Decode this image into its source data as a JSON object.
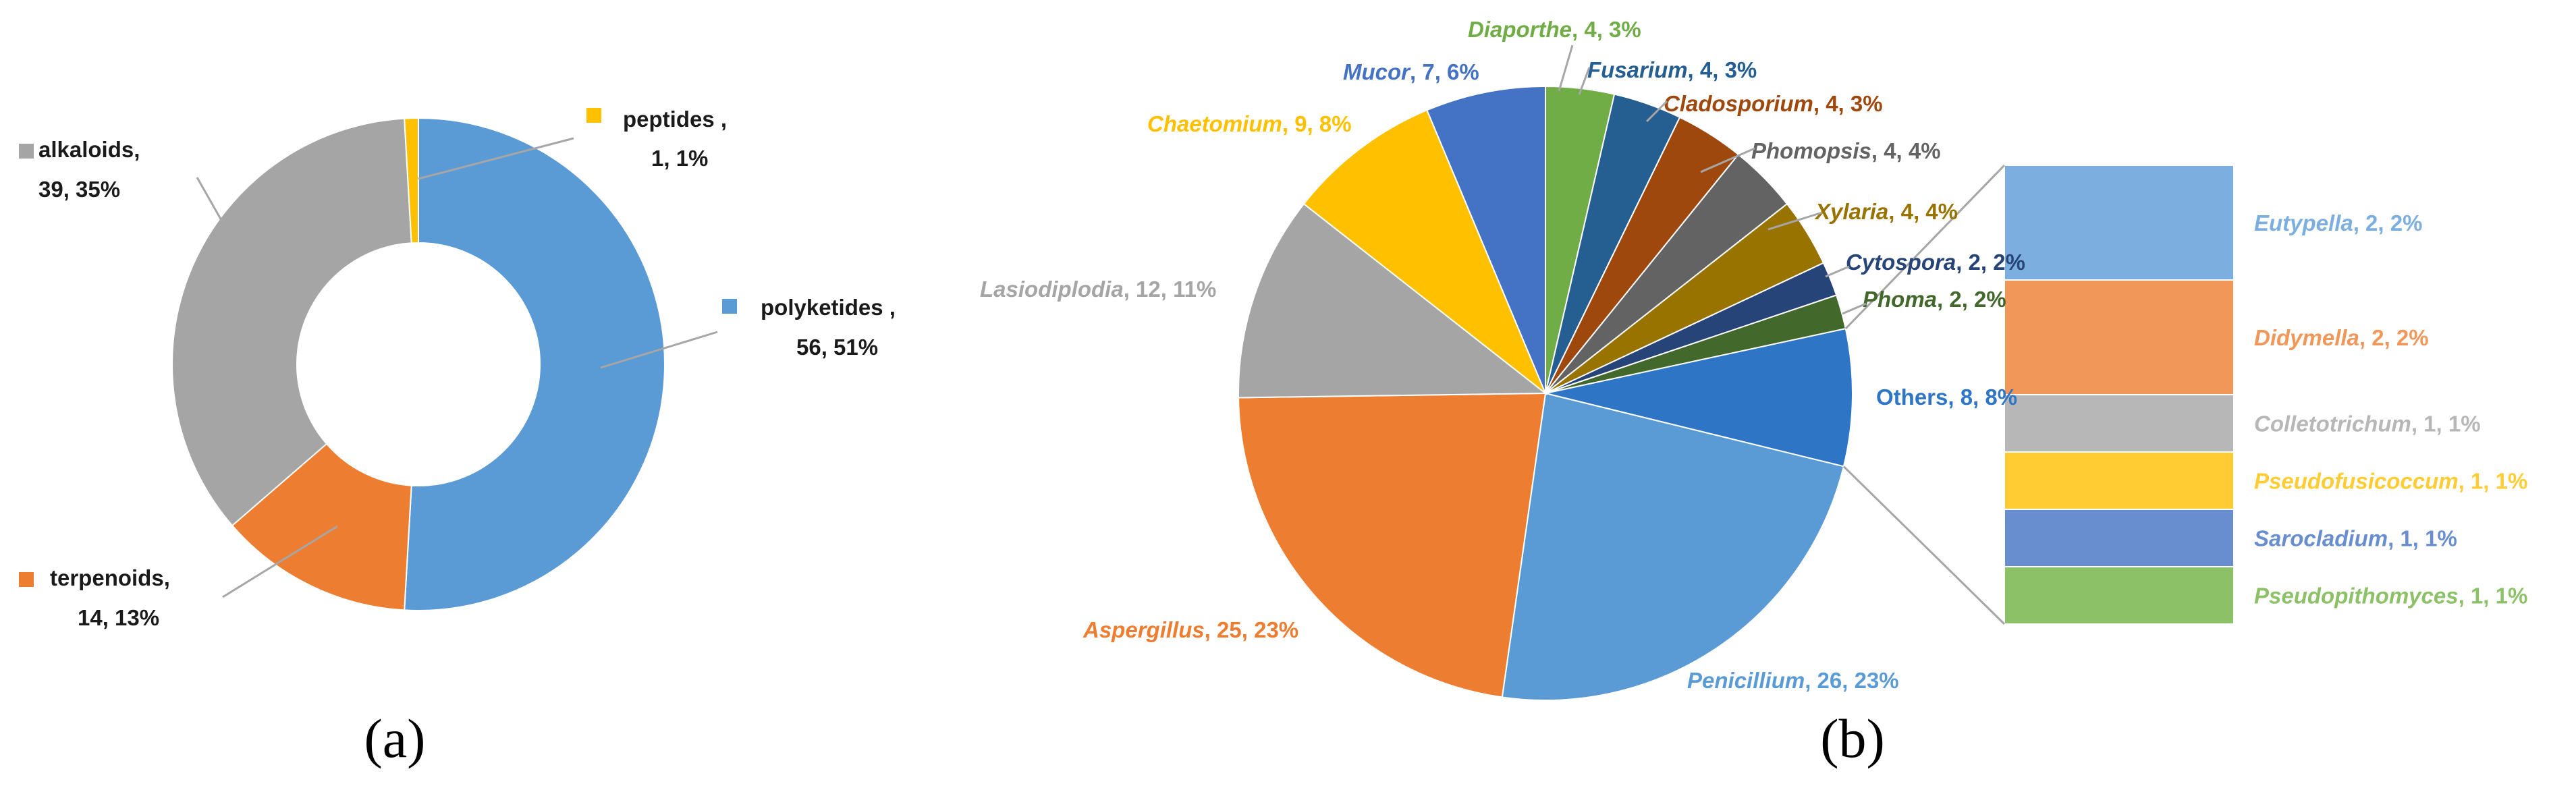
{
  "chart_data": [
    {
      "type": "pie",
      "variant": "donut",
      "panel_label": "(a)",
      "legend": "labels next to slices with colored square markers",
      "slices": [
        {
          "name": "polyketides",
          "label": "polyketides ,",
          "value": 56,
          "percent": "51%",
          "value_text": "56, 51%",
          "color": "#5b9bd5"
        },
        {
          "name": "terpenoids",
          "label": "terpenoids,",
          "value": 14,
          "percent": "13%",
          "value_text": "14, 13%",
          "color": "#ed7d31"
        },
        {
          "name": "alkaloids",
          "label": "alkaloids,",
          "value": 39,
          "percent": "35%",
          "value_text": "39, 35%",
          "color": "#a5a5a5"
        },
        {
          "name": "peptides",
          "label": "peptides ,",
          "value": 1,
          "percent": "1%",
          "value_text": "1, 1%",
          "color": "#ffc000"
        }
      ]
    },
    {
      "type": "pie",
      "variant": "pie-of-bar",
      "panel_label": "(b)",
      "slices": [
        {
          "name": "Penicillium",
          "value": 26,
          "percent": "23%",
          "value_text": ", 26, 23%",
          "color": "#5b9bd5"
        },
        {
          "name": "Aspergillus",
          "value": 25,
          "percent": "23%",
          "value_text": ", 25, 23%",
          "color": "#ed7d31"
        },
        {
          "name": "Lasiodiplodia",
          "value": 12,
          "percent": "11%",
          "value_text": ", 12, 11%",
          "color": "#a5a5a5"
        },
        {
          "name": "Chaetomium",
          "value": 9,
          "percent": "8%",
          "value_text": ", 9, 8%",
          "color": "#ffc000"
        },
        {
          "name": "Mucor",
          "value": 7,
          "percent": "6%",
          "value_text": ", 7, 6%",
          "color": "#4472c4"
        },
        {
          "name": "Diaporthe",
          "value": 4,
          "percent": "3%",
          "value_text": ", 4, 3%",
          "color": "#70ad47"
        },
        {
          "name": "Fusarium",
          "value": 4,
          "percent": "3%",
          "value_text": ", 4, 3%",
          "color": "#255e91"
        },
        {
          "name": "Cladosporium",
          "value": 4,
          "percent": "3%",
          "value_text": ", 4, 3%",
          "color": "#9e480e"
        },
        {
          "name": "Phomopsis",
          "value": 4,
          "percent": "4%",
          "value_text": ", 4, 4%",
          "color": "#636363"
        },
        {
          "name": "Xylaria",
          "value": 4,
          "percent": "4%",
          "value_text": ", 4, 4%",
          "color": "#997300"
        },
        {
          "name": "Cytospora",
          "value": 2,
          "percent": "2%",
          "value_text": ", 2, 2%",
          "color": "#264478"
        },
        {
          "name": "Phoma",
          "value": 2,
          "percent": "2%",
          "value_text": ", 2, 2%",
          "color": "#43682b"
        },
        {
          "name": "Others",
          "value": 8,
          "percent": "8%",
          "value_text": "Others, 8, 8%",
          "color": "#2e75c6",
          "is_others": true
        }
      ],
      "others_breakdown": [
        {
          "name": "Eutypella",
          "value": 2,
          "percent": "2%",
          "value_text": ", 2, 2%",
          "color": "#7cafe0"
        },
        {
          "name": "Didymella",
          "value": 2,
          "percent": "2%",
          "value_text": ", 2, 2%",
          "color": "#f1975a"
        },
        {
          "name": "Colletotrichum",
          "value": 1,
          "percent": "1%",
          "value_text": ", 1, 1%",
          "color": "#b7b7b7"
        },
        {
          "name": "Pseudofusicoccum",
          "value": 1,
          "percent": "1%",
          "value_text": ", 1, 1%",
          "color": "#ffcd33"
        },
        {
          "name": "Sarocladium",
          "value": 1,
          "percent": "1%",
          "value_text": ", 1, 1%",
          "color": "#698ed0"
        },
        {
          "name": "Pseudopithomyces",
          "value": 1,
          "percent": "1%",
          "value_text": ", 1, 1%",
          "color": "#8cc168"
        }
      ]
    }
  ]
}
